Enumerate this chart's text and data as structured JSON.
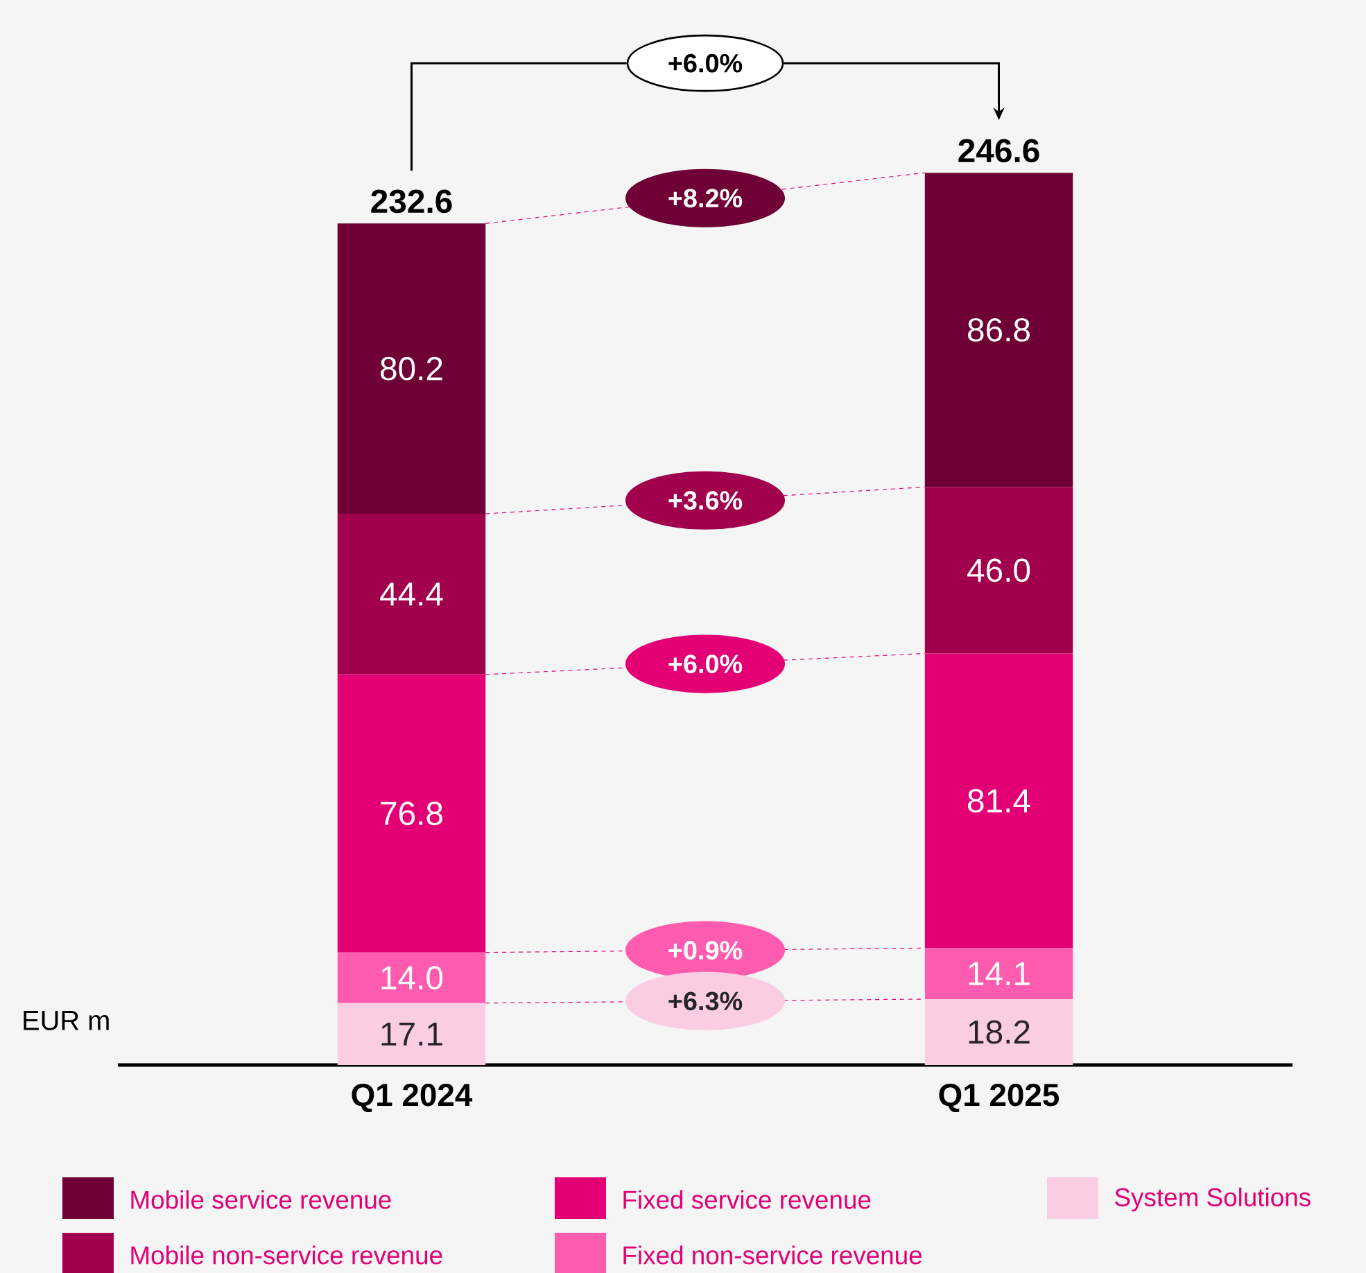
{
  "chart_data": {
    "type": "bar",
    "stacked": true,
    "legend": "bottom",
    "categories": [
      "Q1 2024",
      "Q1 2025"
    ],
    "series": [
      {
        "name": "System Solutions",
        "color": "#fbcde3",
        "values": [
          17.1,
          18.2
        ],
        "value_labels": [
          "17.1",
          "18.2"
        ]
      },
      {
        "name": "Fixed non-service revenue",
        "color": "#ff5cb0",
        "values": [
          14.0,
          14.1
        ],
        "value_labels": [
          "14.0",
          "14.1"
        ]
      },
      {
        "name": "Fixed service revenue",
        "color": "#e20074",
        "values": [
          76.8,
          81.4
        ],
        "value_labels": [
          "76.8",
          "81.4"
        ]
      },
      {
        "name": "Mobile non-service revenue",
        "color": "#a1004c",
        "values": [
          44.4,
          46.0
        ],
        "value_labels": [
          "44.4",
          "46.0"
        ]
      },
      {
        "name": "Mobile service revenue",
        "color": "#6e0036",
        "values": [
          80.2,
          86.8
        ],
        "value_labels": [
          "80.2",
          "86.8"
        ]
      }
    ],
    "totals": [
      "232.6",
      "246.6"
    ],
    "annotations": [
      "+6.0%",
      "+8.2%",
      "+3.6%",
      "+6.0%",
      "+0.9%",
      "+6.3%",
      "EUR m"
    ]
  }
}
